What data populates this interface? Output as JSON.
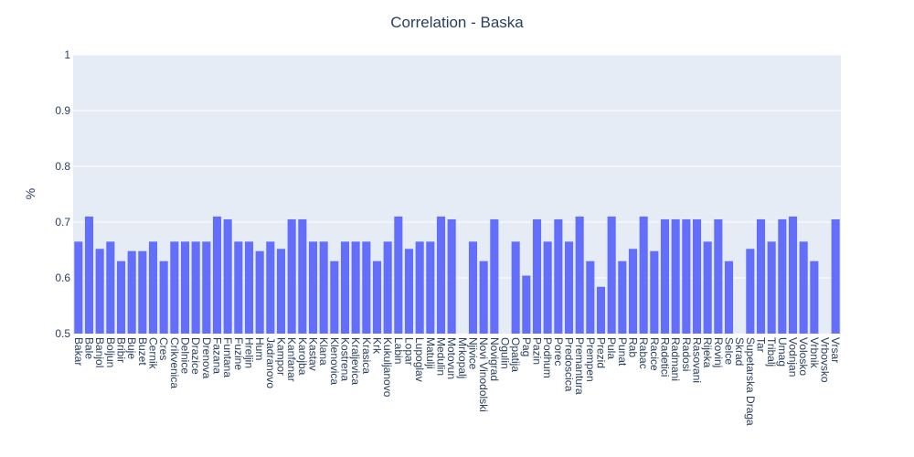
{
  "chart_data": {
    "type": "bar",
    "title": "Correlation - Baska",
    "xlabel": "",
    "ylabel": "%",
    "ylim": [
      0.5,
      1.0
    ],
    "yticks": [
      0.5,
      0.6,
      0.7,
      0.8,
      0.9,
      1
    ],
    "ytick_labels": [
      "0.5",
      "0.6",
      "0.7",
      "0.8",
      "0.9",
      "1"
    ],
    "grid": true,
    "colors": {
      "bar": "#636efa",
      "plot_bg": "#e5ecf6",
      "grid": "#ffffff",
      "text": "#2a3f5f"
    },
    "categories": [
      "Bakar",
      "Bale",
      "Banjol",
      "Boljun",
      "Bribir",
      "Buje",
      "Buzet",
      "Cernik",
      "Cres",
      "Crikvenica",
      "Delnice",
      "Drazice",
      "Drenova",
      "Fazana",
      "Funtana",
      "Fuzine",
      "Hreljin",
      "Hum",
      "Jadranovo",
      "Kampor",
      "Kanfanar",
      "Karojba",
      "Kastav",
      "Klana",
      "Klenovica",
      "Kostrena",
      "Kraljevica",
      "Krasica",
      "Krk",
      "Kukuljanovo",
      "Labin",
      "Lopar",
      "Lupoglav",
      "Matulji",
      "Medulin",
      "Motovun",
      "Mrkopalj",
      "Njivice",
      "Novi Vinodolski",
      "Novigrad",
      "Ogulin",
      "Opatija",
      "Pag",
      "Pazin",
      "Podhum",
      "Porec",
      "Predoscica",
      "Premantura",
      "Prempen",
      "Prezid",
      "Pula",
      "Punat",
      "Rab",
      "Rabac",
      "Racice",
      "Radetici",
      "Radmani",
      "Radosi",
      "Rasovani",
      "Rijeka",
      "Rovinj",
      "Selce",
      "Skrad",
      "Supetarska Draga",
      "Tar",
      "Tribalj",
      "Umag",
      "Vodnjan",
      "Volosko",
      "Vrbnik",
      "Vrbovsko",
      "Vrsar"
    ],
    "values": [
      0.665,
      0.71,
      0.652,
      0.665,
      0.63,
      0.648,
      0.648,
      0.665,
      0.63,
      0.665,
      0.665,
      0.665,
      0.665,
      0.71,
      0.705,
      0.665,
      0.665,
      0.648,
      0.665,
      0.652,
      0.705,
      0.705,
      0.665,
      0.665,
      0.63,
      0.665,
      0.665,
      0.665,
      0.63,
      0.665,
      0.71,
      0.652,
      0.665,
      0.665,
      0.71,
      0.705,
      null,
      0.665,
      0.63,
      0.705,
      null,
      0.665,
      0.604,
      0.705,
      0.665,
      0.705,
      0.665,
      0.71,
      0.63,
      0.584,
      0.71,
      0.63,
      0.652,
      0.71,
      0.648,
      0.705,
      0.705,
      0.705,
      0.705,
      0.665,
      0.705,
      0.63,
      null,
      0.652,
      0.705,
      0.665,
      0.705,
      0.71,
      0.665,
      0.63,
      null,
      0.705
    ]
  }
}
